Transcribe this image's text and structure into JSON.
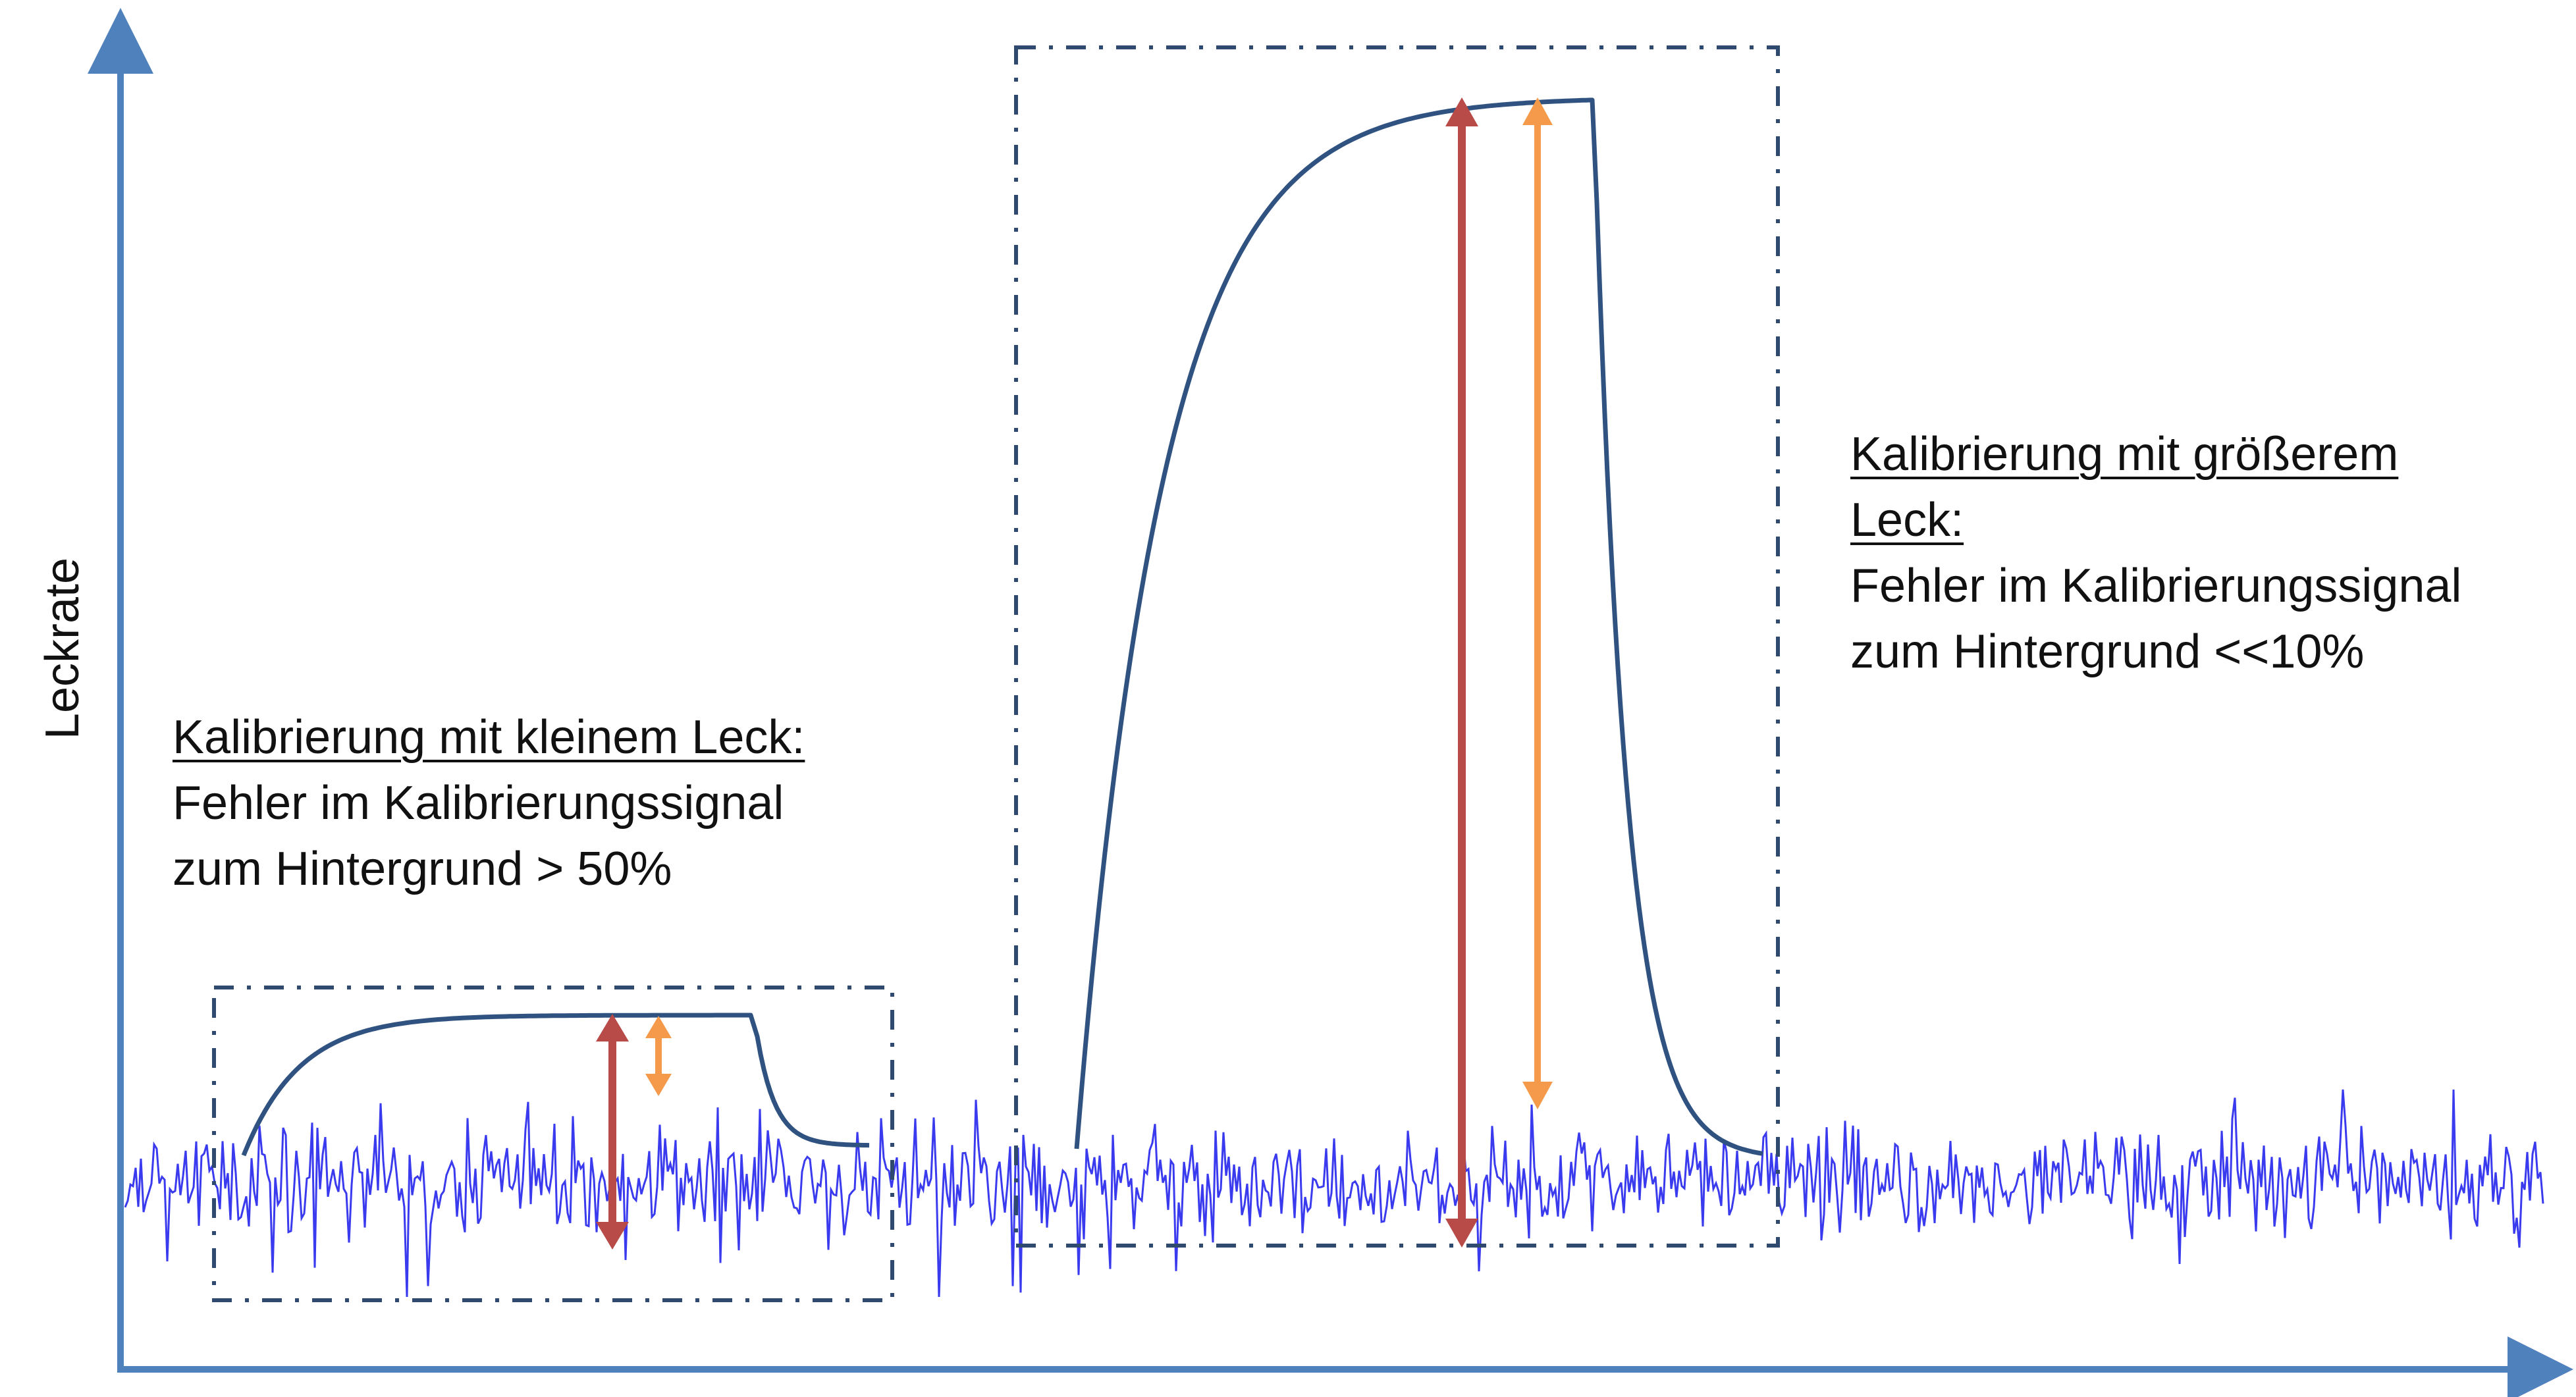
{
  "axis": {
    "ylabel": "Leckrate",
    "color": "#4f81bd"
  },
  "annotations": {
    "small_leak": {
      "heading": "Kalibrierung mit kleinem Leck:",
      "line1": "Fehler im Kalibrierungssignal",
      "line2": "zum Hintergrund > 50%"
    },
    "large_leak": {
      "heading_line1": "Kalibrierung mit größerem",
      "heading_line2": "Leck:",
      "line1": "Fehler im Kalibrierungssignal",
      "line2": "zum Hintergrund <<10%"
    }
  },
  "colors": {
    "noise": "#3a3aee",
    "signal_curve": "#2f5280",
    "box_border": "#2f4a6e",
    "arrow_total": "#b84a48",
    "arrow_signal": "#f59a4a"
  }
}
